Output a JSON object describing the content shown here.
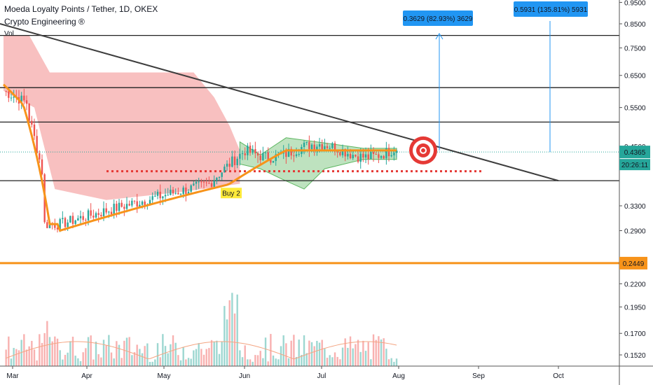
{
  "header": {
    "title": "Moeda Loyalty Points / Tether, 1D, OKEX",
    "indicator": "Crypto Engineering ®",
    "vol": "Vol"
  },
  "chart_data": {
    "type": "candlestick",
    "x_ticks": [
      "Mar",
      "Apr",
      "May",
      "Jun",
      "Jul",
      "Aug",
      "Sep",
      "Oct"
    ],
    "y_ticks": [
      0.152,
      0.17,
      0.195,
      0.22,
      0.29,
      0.33,
      0.45,
      0.55,
      0.65,
      0.75,
      0.85,
      0.95
    ],
    "y_tick_labels": [
      "0.1520",
      "0.1700",
      "0.1950",
      "0.2200",
      "0.2900",
      "0.3300",
      "0.4500",
      "0.5500",
      "0.6500",
      "0.7500",
      "0.8500",
      "0.9500"
    ],
    "y_scale": "log",
    "last_price": {
      "label": "0.4365",
      "countdown": "20:26:11",
      "value": 0.4365,
      "color": "#26a69a"
    },
    "support_level": {
      "label": "0.2449",
      "value": 0.2449,
      "color": "#f7931a"
    },
    "annotations": [
      {
        "text": "0.3629 (82.93%) 3629",
        "color": "#2196f3"
      },
      {
        "text": "0.5931 (135.81%) 5931",
        "color": "#2196f3"
      },
      {
        "text": "Buy 2",
        "color": "#ffeb3b"
      }
    ],
    "series": [
      {
        "name": "Moeda Loyalty Points / Tether",
        "note": "daily candles"
      }
    ]
  },
  "colors": {
    "up": "#26a69a",
    "down": "#ef5350",
    "cloud_red": "#f7b9b9",
    "cloud_green": "#b7dfb9",
    "ma": "#f7931a",
    "trend": "#3d3d3d"
  }
}
